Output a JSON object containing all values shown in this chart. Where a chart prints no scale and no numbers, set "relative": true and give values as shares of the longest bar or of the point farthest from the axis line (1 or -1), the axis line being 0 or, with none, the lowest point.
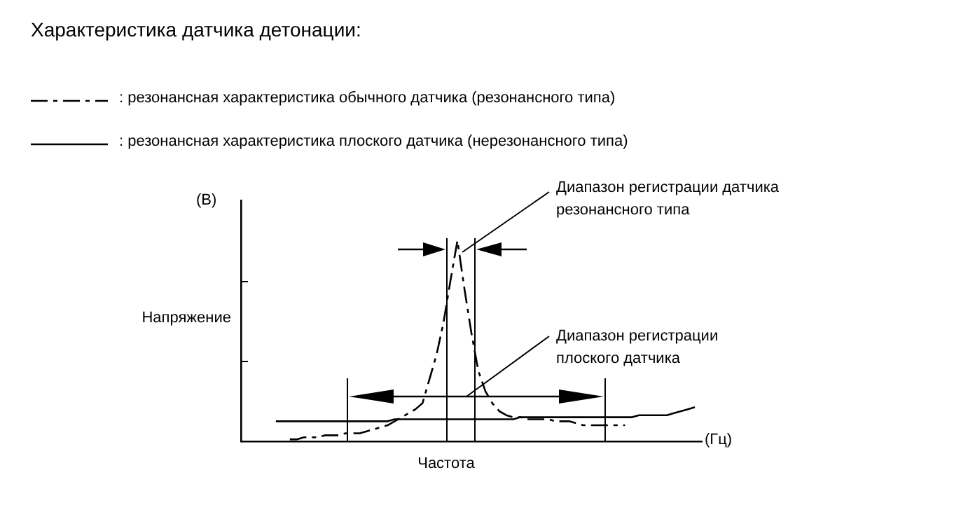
{
  "chart_data": {
    "type": "line",
    "relative": true,
    "title": "Характеристика датчика детонации:",
    "xlabel": "Частота",
    "ylabel": "Напряжение",
    "legend": "top left",
    "grid": false,
    "marker": "none",
    "categories": [
      null,
      null,
      null,
      null,
      null,
      null,
      null,
      null,
      null,
      null,
      null,
      null,
      null,
      null,
      null,
      null,
      null,
      null,
      null,
      null,
      null,
      null,
      null,
      null,
      null,
      null,
      null,
      null,
      null,
      null,
      null,
      null,
      null,
      null,
      null,
      null,
      null,
      null,
      null,
      null,
      null,
      null,
      null,
      null,
      null,
      null,
      null,
      null,
      null,
      null,
      null,
      null,
      null,
      null,
      null,
      null,
      null,
      null,
      null,
      null,
      null,
      null,
      null,
      null,
      null,
      null,
      null
    ],
    "series": [
      {
        "name": ": резонансная характеристика обычного датчика (резонансного типа)",
        "color": "#000000",
        "line_style": "dashed",
        "values": [
          null,
          null,
          null,
          null,
          null,
          null,
          null,
          0.01,
          0.01,
          0.02,
          0.02,
          0.02,
          0.03,
          0.03,
          0.03,
          0.04,
          0.04,
          0.04,
          0.05,
          0.06,
          0.07,
          0.08,
          0.1,
          0.12,
          0.14,
          0.16,
          0.19,
          0.31,
          0.43,
          0.59,
          0.8,
          1,
          0.76,
          0.54,
          0.35,
          0.25,
          0.19,
          0.15,
          0.13,
          0.12,
          0.12,
          0.11,
          0.11,
          0.11,
          0.11,
          0.1,
          0.1,
          0.1,
          0.09,
          0.08,
          0.08,
          0.08,
          0.08,
          0.08,
          0.08,
          0.08,
          null,
          null,
          null,
          null,
          null,
          null,
          null,
          null,
          null,
          null,
          null
        ]
      },
      {
        "name": ": резонансная характеристика плоского датчика (нерезонансного типа)",
        "color": "#000000",
        "line_style": "solid",
        "values": [
          null,
          null,
          null,
          null,
          null,
          0.1,
          0.1,
          0.1,
          0.1,
          0.1,
          0.1,
          0.1,
          0.1,
          0.1,
          0.1,
          0.1,
          0.1,
          0.1,
          0.1,
          0.1,
          0.1,
          0.1,
          0.11,
          0.11,
          0.11,
          0.11,
          0.11,
          0.11,
          0.11,
          0.11,
          0.11,
          0.11,
          0.11,
          0.11,
          0.11,
          0.11,
          0.11,
          0.11,
          0.11,
          0.11,
          0.12,
          0.12,
          0.12,
          0.12,
          0.12,
          0.12,
          0.12,
          0.12,
          0.12,
          0.12,
          0.12,
          0.12,
          0.12,
          0.12,
          0.12,
          0.12,
          0.12,
          0.13,
          0.13,
          0.13,
          0.13,
          0.13,
          0.14,
          0.15,
          0.16,
          0.17,
          null
        ]
      }
    ],
    "annotations": [
      "(В)",
      "(Гц)",
      "Диапазон регистрации датчика\nрезонансного типа",
      "Диапазон регистрации\nплоского датчика"
    ]
  }
}
